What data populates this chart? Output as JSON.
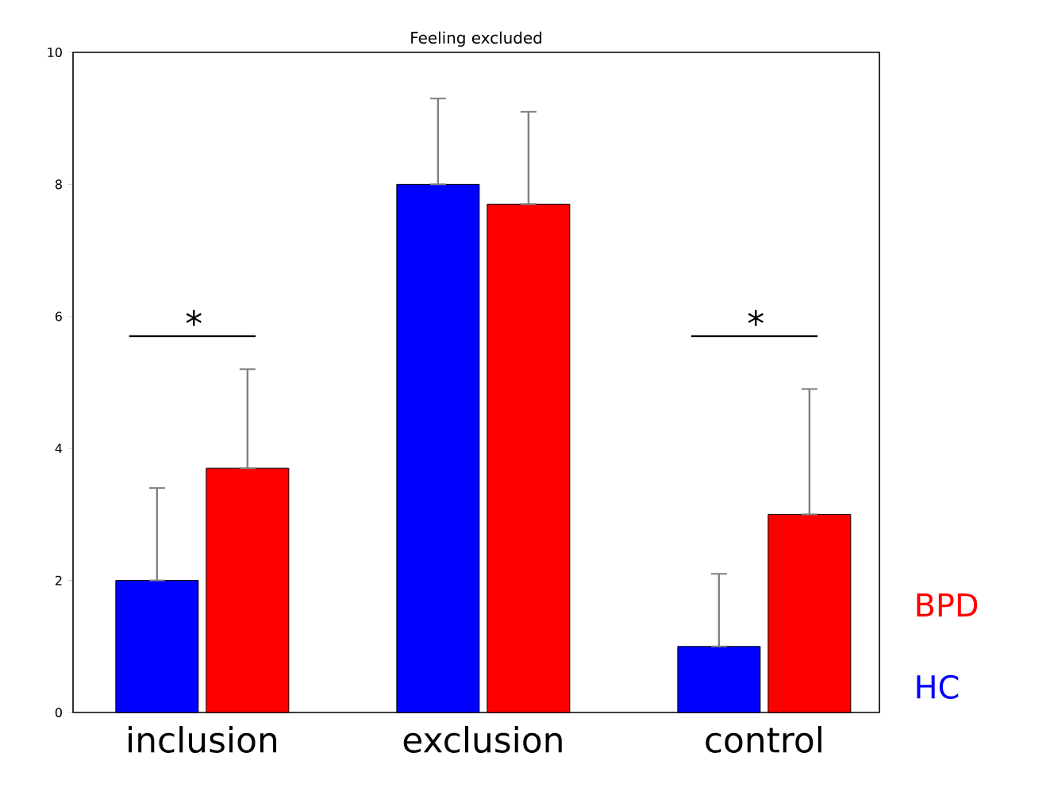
{
  "chart_data": {
    "type": "bar",
    "title": "Feeling excluded",
    "categories": [
      "inclusion",
      "exclusion",
      "control"
    ],
    "series": [
      {
        "name": "HC",
        "color": "#0000ff",
        "values": [
          2.0,
          8.0,
          1.0
        ],
        "errors": [
          [
            2.0,
            3.4
          ],
          [
            8.0,
            9.3
          ],
          [
            1.0,
            2.1
          ]
        ]
      },
      {
        "name": "BPD",
        "color": "#ff0000",
        "values": [
          3.7,
          7.7,
          3.0
        ],
        "errors": [
          [
            3.7,
            5.2
          ],
          [
            7.7,
            9.1
          ],
          [
            3.0,
            4.9
          ]
        ]
      }
    ],
    "ylim": [
      0,
      10
    ],
    "yticks": [
      0,
      2,
      4,
      6,
      8,
      10
    ],
    "grid": false,
    "legend": "bottom right",
    "annotations": [
      "*",
      "*"
    ]
  }
}
